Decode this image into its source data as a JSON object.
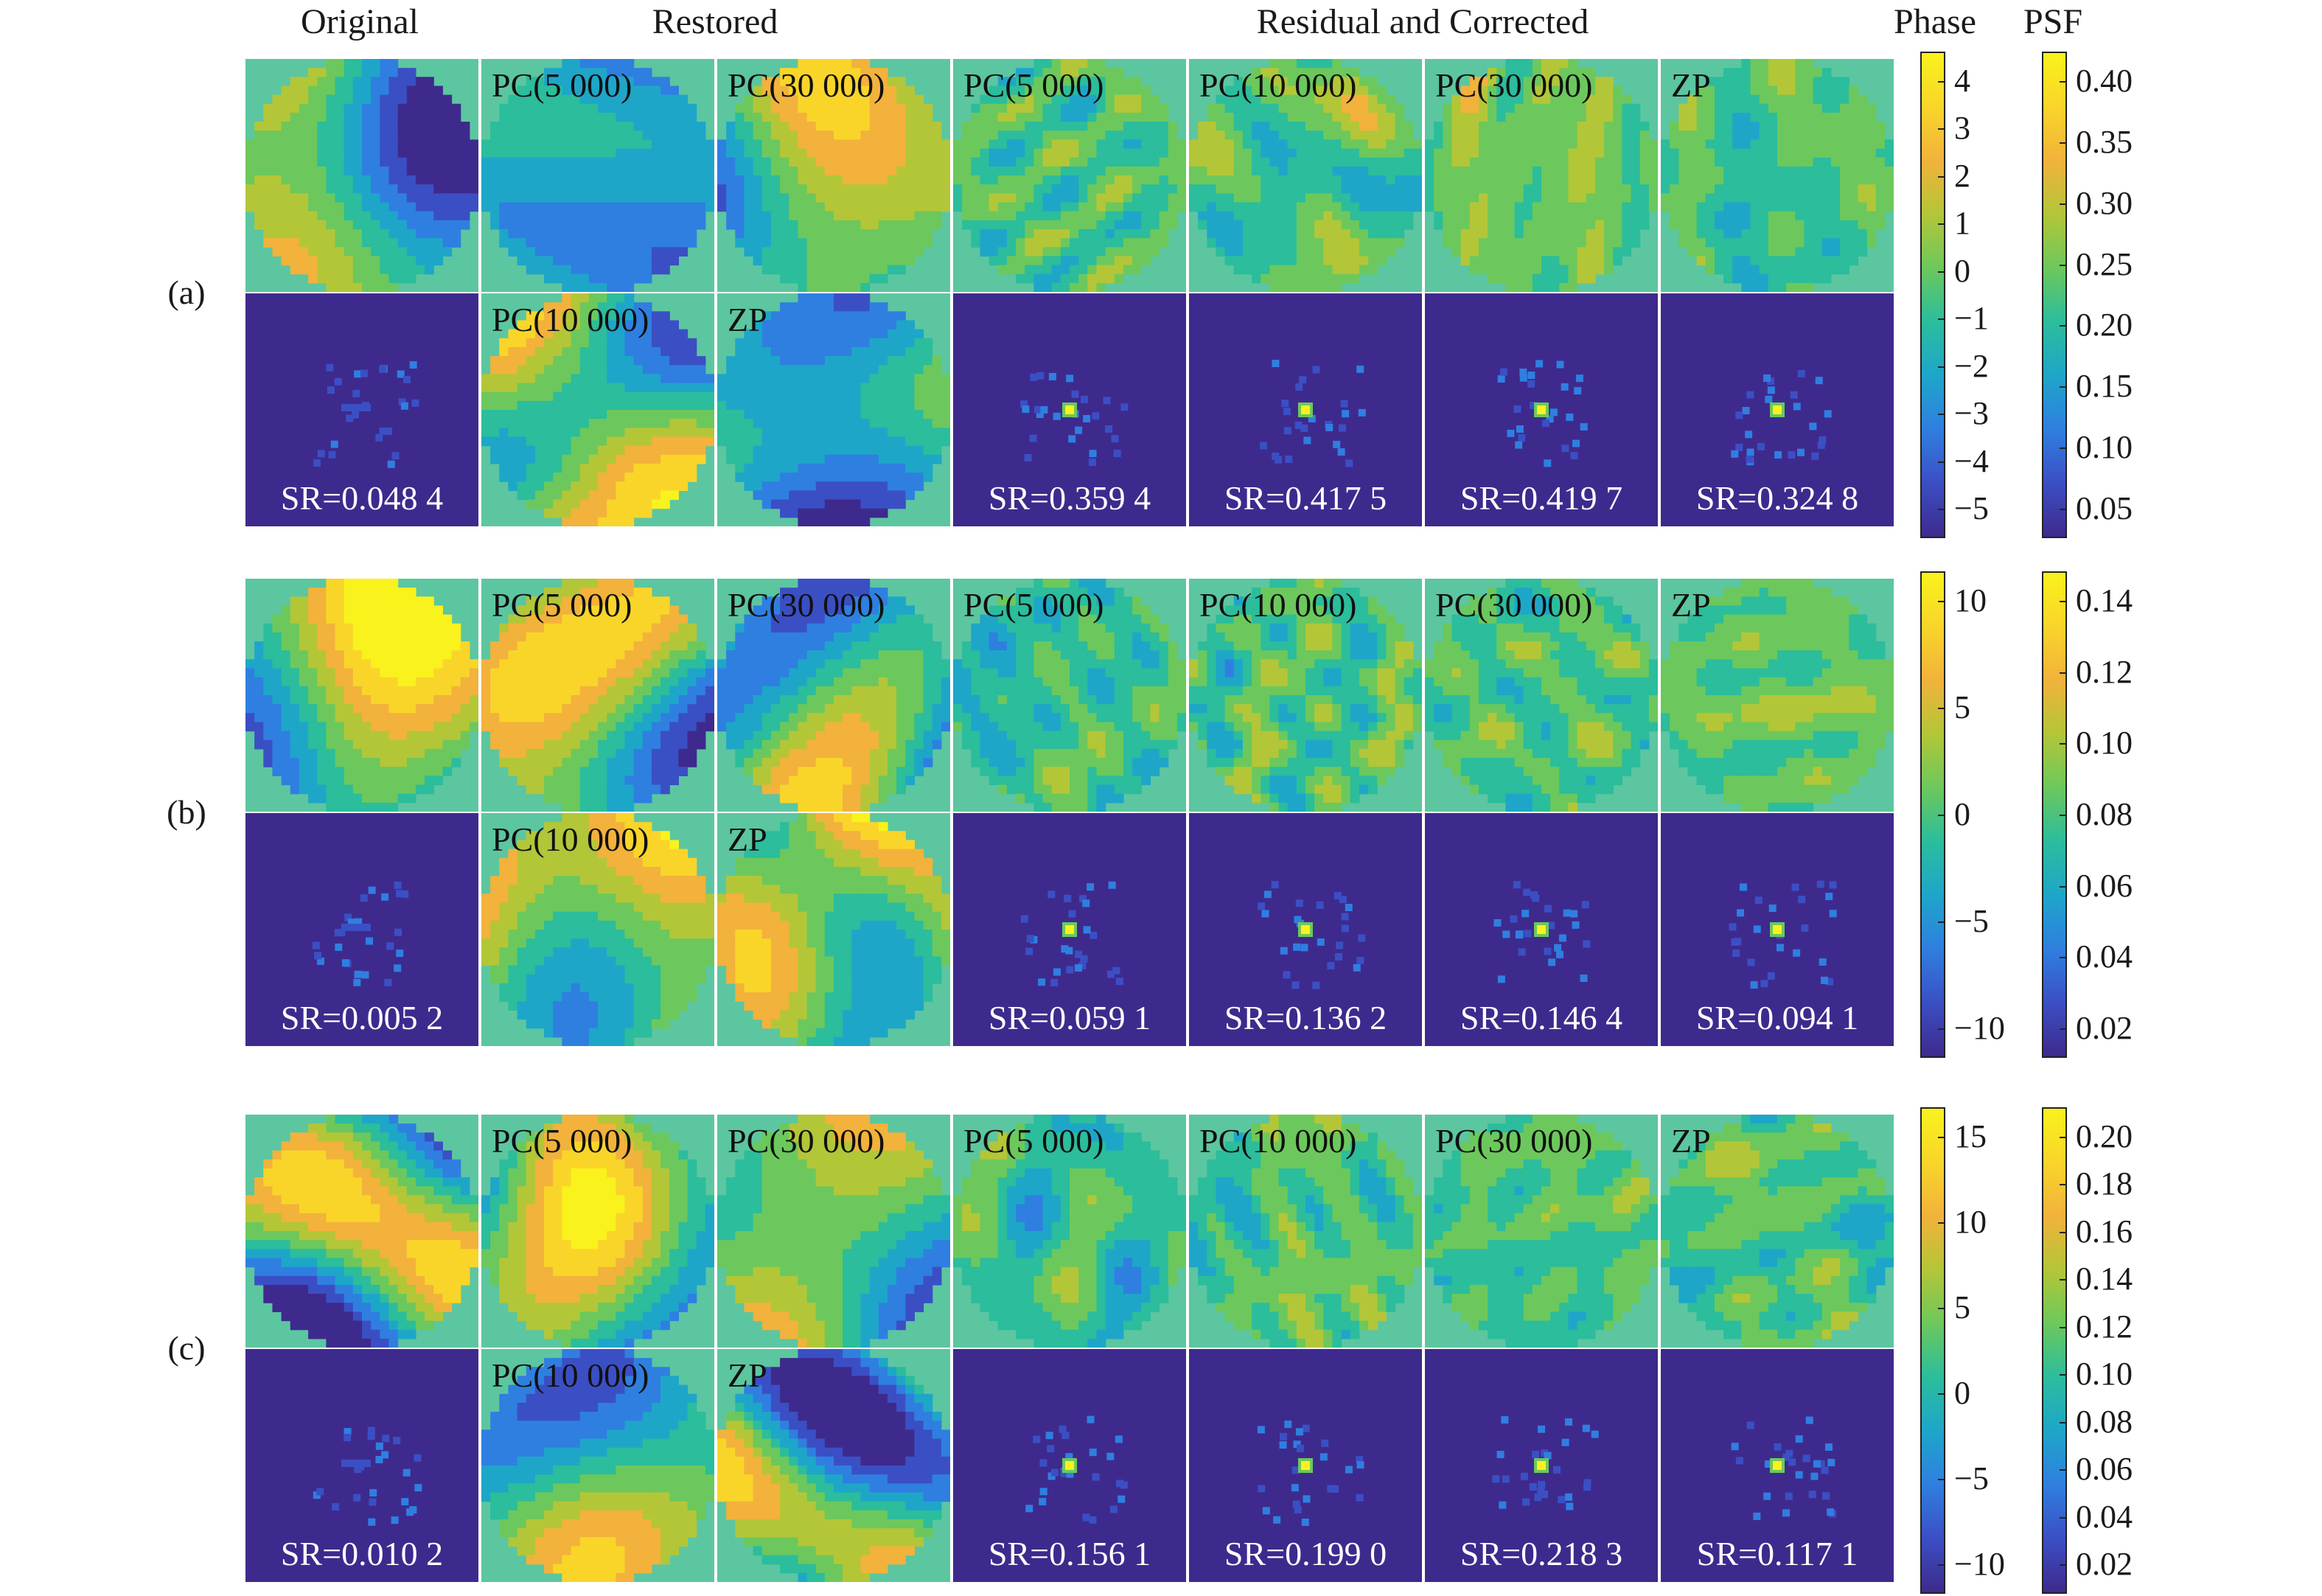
{
  "headers": {
    "original": "Original",
    "restored": "Restored",
    "residual": "Residual and Corrected",
    "phase": "Phase",
    "psf": "PSF"
  },
  "colormap": [
    "#3e2a8d",
    "#3b4fc4",
    "#2f7fe0",
    "#1ea6c9",
    "#2bbd9c",
    "#6cc85c",
    "#b3c638",
    "#f2b23b",
    "#f9d52a",
    "#f9f21c"
  ],
  "panels": [
    {
      "label": "(a)",
      "top_tiles": [
        {
          "label": "",
          "kind": "phase"
        },
        {
          "label": "PC(5 000)",
          "kind": "phase"
        },
        {
          "label": "PC(30 000)",
          "kind": "phase"
        },
        {
          "label": "PC(5 000)",
          "kind": "residual"
        },
        {
          "label": "PC(10 000)",
          "kind": "residual"
        },
        {
          "label": "PC(30 000)",
          "kind": "residual"
        },
        {
          "label": "ZP",
          "kind": "residual"
        }
      ],
      "bottom_tiles": [
        {
          "label": "",
          "kind": "psf",
          "sr": "SR=0.048 4"
        },
        {
          "label": "PC(10 000)",
          "kind": "phase"
        },
        {
          "label": "ZP",
          "kind": "phase"
        },
        {
          "label": "",
          "kind": "psf",
          "sr": "SR=0.359 4"
        },
        {
          "label": "",
          "kind": "psf",
          "sr": "SR=0.417 5"
        },
        {
          "label": "",
          "kind": "psf",
          "sr": "SR=0.419 7"
        },
        {
          "label": "",
          "kind": "psf",
          "sr": "SR=0.324 8"
        }
      ],
      "phase_ticks": [
        "4",
        "3",
        "2",
        "1",
        "0",
        "−1",
        "−2",
        "−3",
        "−4",
        "−5"
      ],
      "psf_ticks": [
        "0.40",
        "0.35",
        "0.30",
        "0.25",
        "0.20",
        "0.15",
        "0.10",
        "0.05"
      ]
    },
    {
      "label": "(b)",
      "top_tiles": [
        {
          "label": "",
          "kind": "phase"
        },
        {
          "label": "PC(5 000)",
          "kind": "phase"
        },
        {
          "label": "PC(30 000)",
          "kind": "phase"
        },
        {
          "label": "PC(5 000)",
          "kind": "residual"
        },
        {
          "label": "PC(10 000)",
          "kind": "residual"
        },
        {
          "label": "PC(30 000)",
          "kind": "residual"
        },
        {
          "label": "ZP",
          "kind": "residual"
        }
      ],
      "bottom_tiles": [
        {
          "label": "",
          "kind": "psf",
          "sr": "SR=0.005 2"
        },
        {
          "label": "PC(10 000)",
          "kind": "phase"
        },
        {
          "label": "ZP",
          "kind": "phase"
        },
        {
          "label": "",
          "kind": "psf",
          "sr": "SR=0.059 1"
        },
        {
          "label": "",
          "kind": "psf",
          "sr": "SR=0.136 2"
        },
        {
          "label": "",
          "kind": "psf",
          "sr": "SR=0.146 4"
        },
        {
          "label": "",
          "kind": "psf",
          "sr": "SR=0.094 1"
        }
      ],
      "phase_ticks": [
        "10",
        "5",
        "0",
        "−5",
        "−10"
      ],
      "psf_ticks": [
        "0.14",
        "0.12",
        "0.10",
        "0.08",
        "0.06",
        "0.04",
        "0.02"
      ]
    },
    {
      "label": "(c)",
      "top_tiles": [
        {
          "label": "",
          "kind": "phase"
        },
        {
          "label": "PC(5 000)",
          "kind": "phase"
        },
        {
          "label": "PC(30 000)",
          "kind": "phase"
        },
        {
          "label": "PC(5 000)",
          "kind": "residual"
        },
        {
          "label": "PC(10 000)",
          "kind": "residual"
        },
        {
          "label": "PC(30 000)",
          "kind": "residual"
        },
        {
          "label": "ZP",
          "kind": "residual"
        }
      ],
      "bottom_tiles": [
        {
          "label": "",
          "kind": "psf",
          "sr": "SR=0.010 2"
        },
        {
          "label": "PC(10 000)",
          "kind": "phase"
        },
        {
          "label": "ZP",
          "kind": "phase"
        },
        {
          "label": "",
          "kind": "psf",
          "sr": "SR=0.156 1"
        },
        {
          "label": "",
          "kind": "psf",
          "sr": "SR=0.199 0"
        },
        {
          "label": "",
          "kind": "psf",
          "sr": "SR=0.218 3"
        },
        {
          "label": "",
          "kind": "psf",
          "sr": "SR=0.117 1"
        }
      ],
      "phase_ticks": [
        "15",
        "10",
        "5",
        "0",
        "−5",
        "−10"
      ],
      "psf_ticks": [
        "0.20",
        "0.18",
        "0.16",
        "0.14",
        "0.12",
        "0.10",
        "0.08",
        "0.06",
        "0.04",
        "0.02"
      ]
    }
  ]
}
